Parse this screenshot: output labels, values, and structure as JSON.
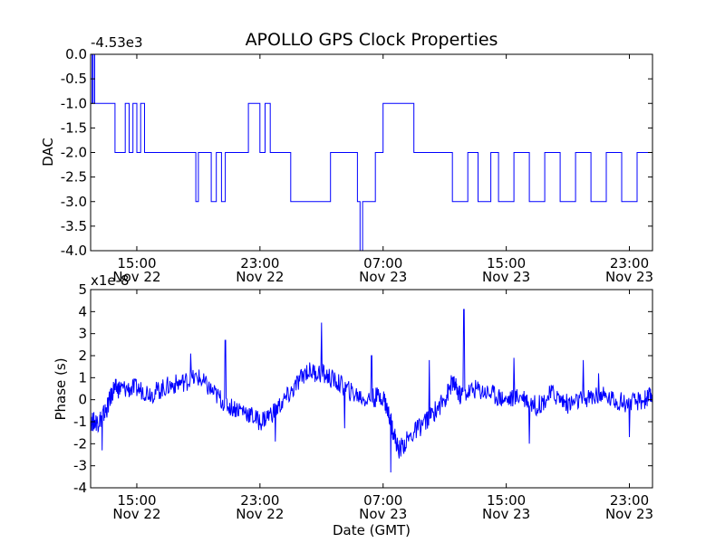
{
  "title": "APOLLO GPS Clock Properties",
  "chart_data": [
    {
      "type": "line",
      "title": "APOLLO GPS Clock Properties",
      "xlabel": "",
      "ylabel": "DAC",
      "offset_label": "-4.53e3",
      "ylim": [
        -4.0,
        0.0
      ],
      "xlim": [
        "2013-11-22 12:00",
        "2013-11-24 00:30"
      ],
      "yticks": [
        "0.0",
        "-0.5",
        "-1.0",
        "-1.5",
        "-2.0",
        "-2.5",
        "-3.0",
        "-3.5",
        "-4.0"
      ],
      "xticks": [
        {
          "time": "15:00",
          "date": "Nov 22"
        },
        {
          "time": "23:00",
          "date": "Nov 22"
        },
        {
          "time": "07:00",
          "date": "Nov 23"
        },
        {
          "time": "15:00",
          "date": "Nov 23"
        },
        {
          "time": "23:00",
          "date": "Nov 23"
        }
      ],
      "color": "#0000ff",
      "series": [
        {
          "x": [
            "2013-11-22 12:00",
            "2013-11-22 12:06",
            "2013-11-22 12:10",
            "2013-11-22 12:16",
            "2013-11-22 12:20",
            "2013-11-22 13:15",
            "2013-11-22 13:35",
            "2013-11-22 14:05",
            "2013-11-22 14:15",
            "2013-11-22 14:30",
            "2013-11-22 14:45",
            "2013-11-22 15:00",
            "2013-11-22 15:15",
            "2013-11-22 15:30",
            "2013-11-22 16:00",
            "2013-11-22 16:40",
            "2013-11-22 18:50",
            "2013-11-22 19:00",
            "2013-11-22 19:50",
            "2013-11-22 20:10",
            "2013-11-22 20:30",
            "2013-11-22 20:45",
            "2013-11-22 22:00",
            "2013-11-22 22:15",
            "2013-11-22 23:00",
            "2013-11-22 23:20",
            "2013-11-22 23:40",
            "2013-11-23 01:00",
            "2013-11-23 03:30",
            "2013-11-23 03:35",
            "2013-11-23 05:20",
            "2013-11-23 05:30",
            "2013-11-23 05:40",
            "2013-11-23 06:20",
            "2013-11-23 06:30",
            "2013-11-23 07:00",
            "2013-11-23 07:30",
            "2013-11-23 08:30",
            "2013-11-23 09:00",
            "2013-11-23 09:45",
            "2013-11-23 10:30",
            "2013-11-23 11:30",
            "2013-11-23 12:30",
            "2013-11-23 13:10",
            "2013-11-23 14:00",
            "2013-11-23 14:30",
            "2013-11-23 15:30",
            "2013-11-23 16:30",
            "2013-11-23 17:30",
            "2013-11-23 18:30",
            "2013-11-23 19:30",
            "2013-11-23 20:30",
            "2013-11-23 21:30",
            "2013-11-23 22:30",
            "2013-11-23 23:30",
            "2013-11-24 00:30"
          ],
          "values": [
            0.0,
            -1.0,
            0.0,
            -1.0,
            -1.0,
            -1.0,
            -2.0,
            -2.0,
            -1.0,
            -2.0,
            -1.0,
            -2.0,
            -1.0,
            -2.0,
            -2.0,
            -2.0,
            -3.0,
            -2.0,
            -3.0,
            -2.0,
            -3.0,
            -2.0,
            -2.0,
            -1.0,
            -2.0,
            -1.0,
            -2.0,
            -3.0,
            -3.0,
            -2.0,
            -3.0,
            -4.0,
            -3.0,
            -3.0,
            -2.0,
            -1.0,
            -1.0,
            -1.0,
            -2.0,
            -2.0,
            -2.0,
            -3.0,
            -2.0,
            -3.0,
            -2.0,
            -3.0,
            -2.0,
            -3.0,
            -2.0,
            -3.0,
            -2.0,
            -3.0,
            -2.0,
            -3.0,
            -2.0,
            -2.0
          ]
        }
      ]
    },
    {
      "type": "line",
      "title": "",
      "xlabel": "Date (GMT)",
      "ylabel": "Phase (s)",
      "offset_label": "x1e-8",
      "ylim": [
        -4,
        5
      ],
      "xlim": [
        "2013-11-22 12:00",
        "2013-11-24 00:30"
      ],
      "yticks": [
        "5",
        "4",
        "3",
        "2",
        "1",
        "0",
        "-1",
        "-2",
        "-3",
        "-4"
      ],
      "xticks": [
        {
          "time": "15:00",
          "date": "Nov 22"
        },
        {
          "time": "23:00",
          "date": "Nov 22"
        },
        {
          "time": "07:00",
          "date": "Nov 23"
        },
        {
          "time": "15:00",
          "date": "Nov 23"
        },
        {
          "time": "23:00",
          "date": "Nov 23"
        }
      ],
      "color": "#0000ff",
      "series": [
        {
          "x": [
            "2013-11-22 12:00",
            "2013-11-22 12:30",
            "2013-11-22 13:00",
            "2013-11-22 13:30",
            "2013-11-22 14:00",
            "2013-11-22 15:00",
            "2013-11-22 16:00",
            "2013-11-22 17:00",
            "2013-11-22 18:00",
            "2013-11-22 19:00",
            "2013-11-22 20:00",
            "2013-11-22 21:00",
            "2013-11-22 22:00",
            "2013-11-22 23:00",
            "2013-11-23 00:00",
            "2013-11-23 01:00",
            "2013-11-23 02:00",
            "2013-11-23 03:00",
            "2013-11-23 04:00",
            "2013-11-23 05:00",
            "2013-11-23 06:00",
            "2013-11-23 07:00",
            "2013-11-23 07:30",
            "2013-11-23 08:00",
            "2013-11-23 09:00",
            "2013-11-23 10:00",
            "2013-11-23 11:00",
            "2013-11-23 11:30",
            "2013-11-23 12:00",
            "2013-11-23 13:00",
            "2013-11-23 14:00",
            "2013-11-23 15:00",
            "2013-11-23 16:00",
            "2013-11-23 17:00",
            "2013-11-23 18:00",
            "2013-11-23 19:00",
            "2013-11-23 20:00",
            "2013-11-23 21:00",
            "2013-11-23 22:00",
            "2013-11-23 23:00",
            "2013-11-24 00:00",
            "2013-11-24 00:30"
          ],
          "values": [
            -1.0,
            -1.0,
            -0.5,
            0.5,
            0.5,
            0.5,
            0.3,
            0.6,
            0.8,
            1.0,
            0.3,
            -0.3,
            -0.5,
            -1.0,
            -0.5,
            0.3,
            1.3,
            1.2,
            0.8,
            0.3,
            0.0,
            0.2,
            -1.0,
            -2.3,
            -1.5,
            -0.8,
            0.0,
            0.8,
            0.2,
            0.5,
            0.3,
            0.0,
            0.2,
            -0.3,
            0.3,
            -0.2,
            0.0,
            0.2,
            0.0,
            -0.2,
            0.0,
            0.2
          ]
        }
      ],
      "spikes": [
        {
          "x": "2013-11-22 12:45",
          "value": -2.3
        },
        {
          "x": "2013-11-22 18:30",
          "value": 2.1
        },
        {
          "x": "2013-11-22 20:45",
          "value": 2.7
        },
        {
          "x": "2013-11-23 00:00",
          "value": -1.9
        },
        {
          "x": "2013-11-23 03:00",
          "value": 3.5
        },
        {
          "x": "2013-11-23 04:30",
          "value": -1.3
        },
        {
          "x": "2013-11-23 06:15",
          "value": 2.0
        },
        {
          "x": "2013-11-23 07:30",
          "value": -3.3
        },
        {
          "x": "2013-11-23 10:00",
          "value": 1.8
        },
        {
          "x": "2013-11-23 12:15",
          "value": 4.1
        },
        {
          "x": "2013-11-23 15:30",
          "value": 1.9
        },
        {
          "x": "2013-11-23 16:30",
          "value": -2.0
        },
        {
          "x": "2013-11-23 20:00",
          "value": 1.8
        },
        {
          "x": "2013-11-23 21:00",
          "value": 1.2
        },
        {
          "x": "2013-11-23 23:00",
          "value": -1.7
        }
      ]
    }
  ]
}
